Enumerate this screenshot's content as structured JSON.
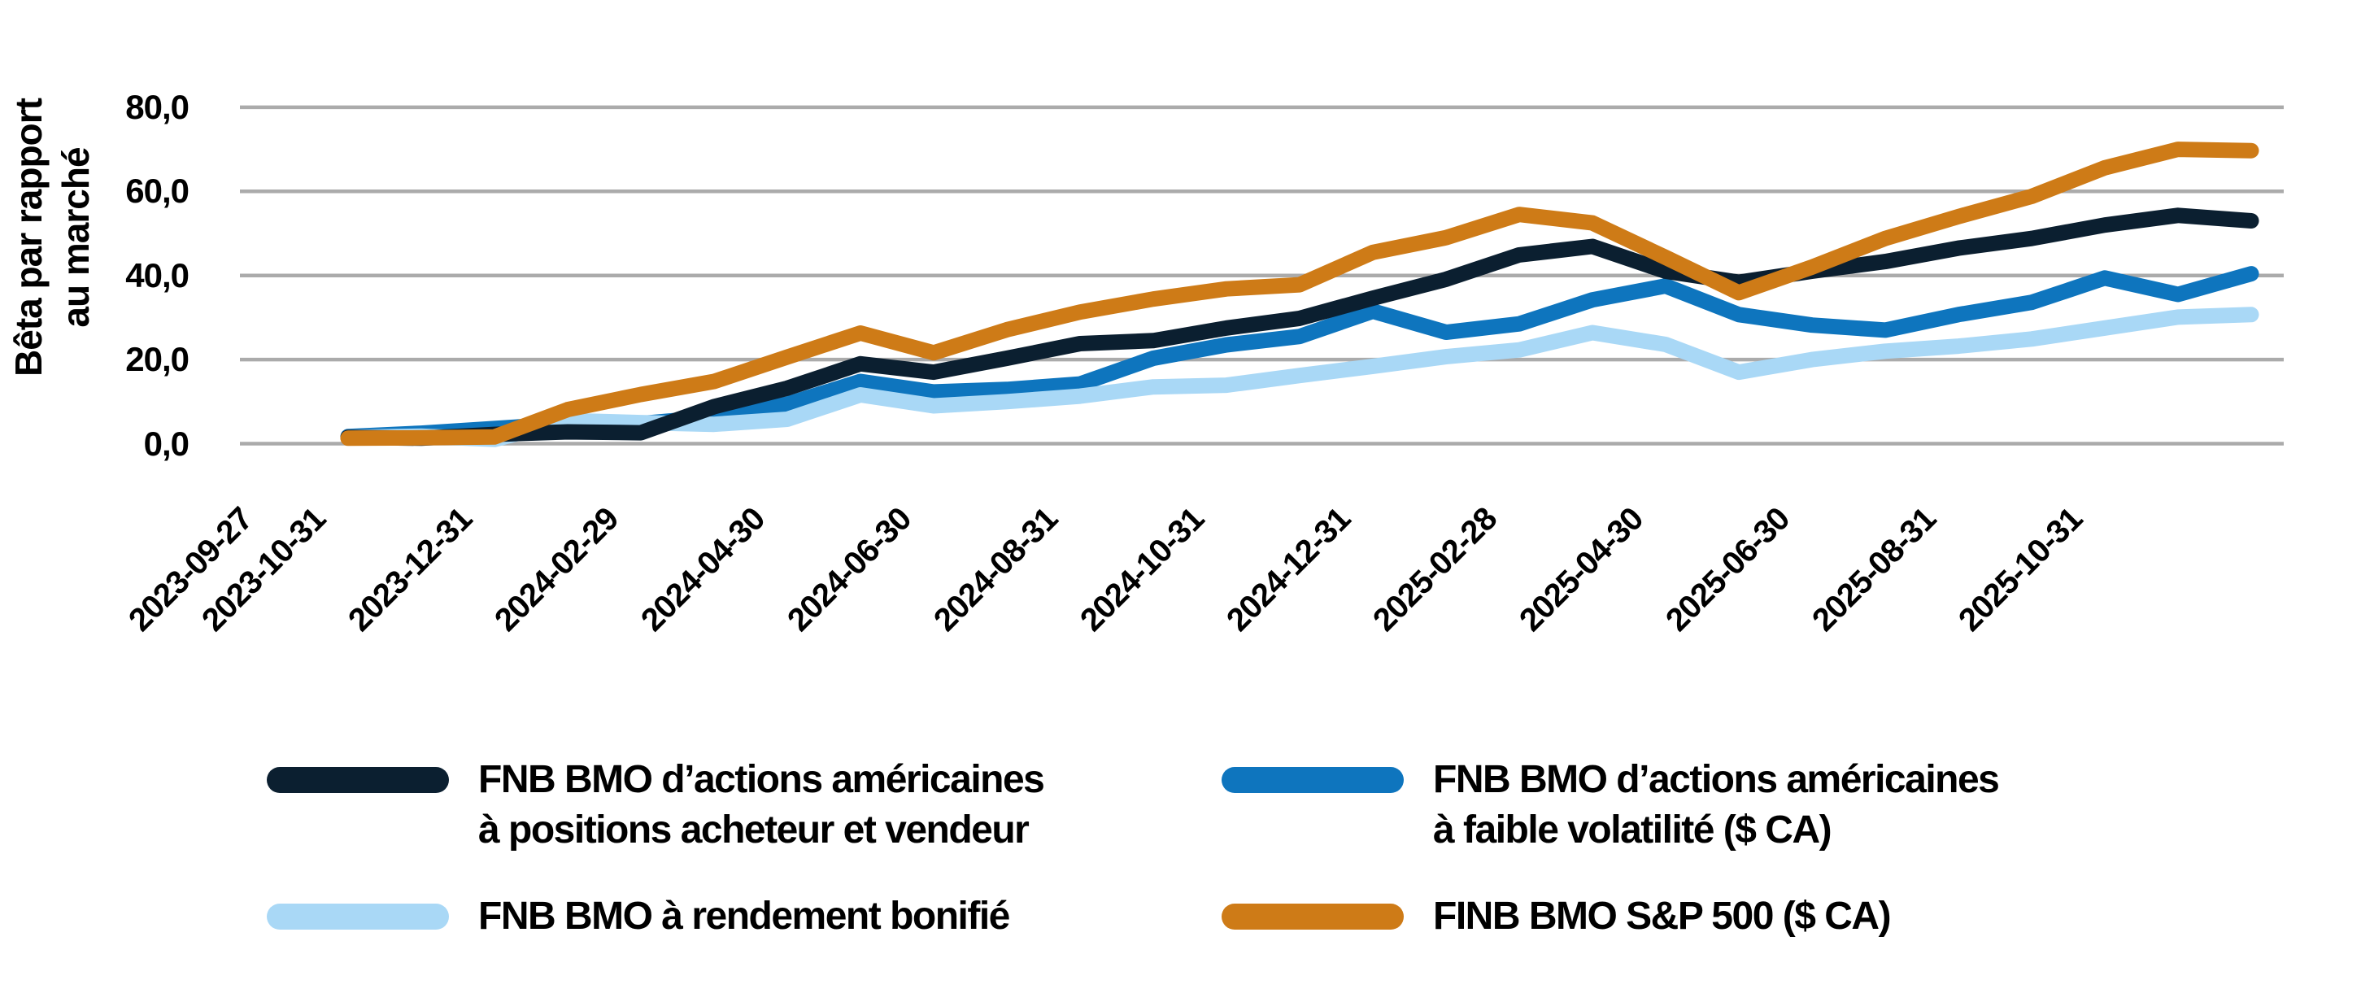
{
  "y_axis": {
    "title_line1": "Bêta par rapport",
    "title_line2": "au marché"
  },
  "colors": {
    "grid": "#ABABAB",
    "background": "#FFFFFF",
    "navy": "#0B1F30",
    "blue": "#0E75BE",
    "light_blue": "#A9D8F6",
    "orange": "#CE7B17"
  },
  "chart_data": {
    "type": "line",
    "title": "",
    "xlabel": "",
    "ylabel": "Bêta par rapport au marché",
    "ylim": [
      0,
      80
    ],
    "grid": "horizontal",
    "legend_position": "bottom",
    "x": [
      "2023-09-27",
      "2023-10-31",
      "2023-11-30",
      "2023-12-31",
      "2024-01-31",
      "2024-02-29",
      "2024-03-31",
      "2024-04-30",
      "2024-05-31",
      "2024-06-30",
      "2024-07-31",
      "2024-08-31",
      "2024-09-30",
      "2024-10-31",
      "2024-11-30",
      "2024-12-31",
      "2025-01-31",
      "2025-02-28",
      "2025-03-31",
      "2025-04-30",
      "2025-05-31",
      "2025-06-30",
      "2025-07-31",
      "2025-08-31",
      "2025-09-30",
      "2025-10-31",
      "2025-11-30"
    ],
    "x_ticks": [
      {
        "index": 0,
        "label": "2023-09-27"
      },
      {
        "index": 1,
        "label": "2023-10-31"
      },
      {
        "index": 3,
        "label": "2023-12-31"
      },
      {
        "index": 5,
        "label": "2024-02-29"
      },
      {
        "index": 7,
        "label": "2024-04-30"
      },
      {
        "index": 9,
        "label": "2024-06-30"
      },
      {
        "index": 11,
        "label": "2024-08-31"
      },
      {
        "index": 13,
        "label": "2024-10-31"
      },
      {
        "index": 15,
        "label": "2024-12-31"
      },
      {
        "index": 17,
        "label": "2025-02-28"
      },
      {
        "index": 19,
        "label": "2025-04-30"
      },
      {
        "index": 21,
        "label": "2025-06-30"
      },
      {
        "index": 23,
        "label": "2025-08-31"
      },
      {
        "index": 25,
        "label": "2025-10-31"
      }
    ],
    "y_ticks": [
      {
        "value": 80,
        "label": "80,0"
      },
      {
        "value": 60,
        "label": "60,0"
      },
      {
        "value": 40,
        "label": "40,0"
      },
      {
        "value": 20,
        "label": "20,0"
      },
      {
        "value": 0,
        "label": "0,0"
      }
    ],
    "series": [
      {
        "id": "navy",
        "name": "FNB BMO d’actions américaines à positions acheteur et vendeur",
        "color": "#0B1F30",
        "values": [
          1.5,
          1.3,
          2.2,
          2.8,
          2.6,
          8.8,
          13.2,
          19.0,
          17.0,
          20.3,
          23.8,
          24.5,
          27.5,
          29.8,
          34.6,
          39.1,
          44.9,
          46.9,
          41.0,
          38.4,
          41.0,
          43.3,
          46.5,
          48.8,
          52.0,
          54.3,
          53.0
        ]
      },
      {
        "id": "blue",
        "name": "FNB BMO d’actions américaines à faible volatilité ($ CA)",
        "color": "#0E75BE",
        "values": [
          1.7,
          2.5,
          3.6,
          4.8,
          4.8,
          6.3,
          9.4,
          14.8,
          12.3,
          12.9,
          14.2,
          20.3,
          23.5,
          25.5,
          31.5,
          26.5,
          28.5,
          34.2,
          37.5,
          30.7,
          28.2,
          27.0,
          30.7,
          33.6,
          39.4,
          35.5,
          40.4
        ]
      },
      {
        "id": "light",
        "name": "FNB BMO à rendement bonifié",
        "color": "#A9D8F6",
        "values": [
          1.5,
          1.8,
          1.0,
          5.5,
          5.0,
          4.6,
          5.8,
          11.6,
          9.0,
          10.0,
          11.3,
          13.5,
          13.9,
          16.2,
          18.4,
          20.7,
          22.3,
          26.4,
          23.6,
          17.0,
          20.0,
          22.0,
          23.2,
          24.9,
          27.5,
          30.1,
          30.7
        ]
      },
      {
        "id": "orange",
        "name": "FINB BMO S&P 500 ($ CA)",
        "color": "#CE7B17",
        "values": [
          1.3,
          1.4,
          1.6,
          8.1,
          11.7,
          14.8,
          20.6,
          26.3,
          21.6,
          27.1,
          31.3,
          34.4,
          36.8,
          37.8,
          45.5,
          49.0,
          54.5,
          52.5,
          44.3,
          35.9,
          42.0,
          48.8,
          54.0,
          58.8,
          65.6,
          70.0,
          69.7
        ]
      }
    ],
    "draw_order": [
      "blue",
      "light",
      "navy",
      "orange"
    ]
  },
  "legend": {
    "items": [
      {
        "series_id": "navy",
        "color": "#0B1F30",
        "line1": "FNB BMO d’actions américaines",
        "line2": "à positions acheteur et vendeur"
      },
      {
        "series_id": "light",
        "color": "#A9D8F6",
        "line1": "FNB BMO à rendement bonifié",
        "line2": ""
      },
      {
        "series_id": "blue",
        "color": "#0E75BE",
        "line1": "FNB BMO d’actions américaines",
        "line2": "à faible volatilité ($ CA)"
      },
      {
        "series_id": "orange",
        "color": "#CE7B17",
        "line1": "FINB BMO S&P 500 ($ CA)",
        "line2": ""
      }
    ]
  }
}
